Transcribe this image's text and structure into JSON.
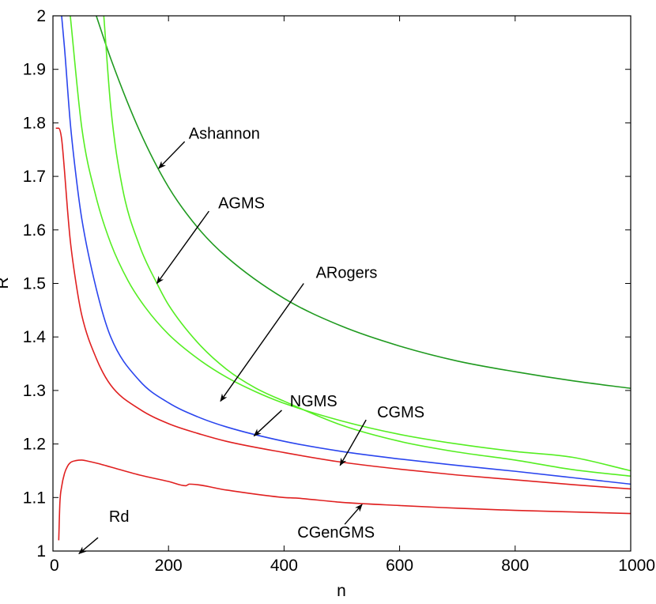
{
  "chart_data": {
    "type": "line",
    "title": "",
    "xlabel": "n",
    "ylabel": "R",
    "xlim": [
      0,
      1000
    ],
    "ylim": [
      1,
      2
    ],
    "xticks": [
      0,
      200,
      400,
      600,
      800,
      1000
    ],
    "xtick_labels": [
      "0",
      "200",
      "400",
      "600",
      "800",
      "1000"
    ],
    "yticks": [
      1,
      1.1,
      1.2,
      1.3,
      1.4,
      1.5,
      1.6,
      1.7,
      1.8,
      1.9,
      2
    ],
    "ytick_labels": [
      "1",
      "1.1",
      "1.2",
      "1.3",
      "1.4",
      "1.5",
      "1.6",
      "1.7",
      "1.8",
      "1.9",
      "2"
    ],
    "grid": false,
    "series": [
      {
        "name": "Ashannon",
        "color": "#1f9a1f",
        "x": [
          75,
          100,
          150,
          200,
          250,
          300,
          400,
          500,
          600,
          700,
          800,
          900,
          1000
        ],
        "y": [
          2.0,
          1.92,
          1.785,
          1.68,
          1.605,
          1.55,
          1.472,
          1.42,
          1.383,
          1.355,
          1.335,
          1.318,
          1.304
        ]
      },
      {
        "name": "AGMS",
        "color": "#55ee22",
        "x": [
          30,
          50,
          75,
          100,
          130,
          160,
          200,
          250,
          300,
          350,
          400,
          500,
          600,
          700,
          800,
          900,
          1000
        ],
        "y": [
          2.0,
          1.79,
          1.66,
          1.575,
          1.505,
          1.455,
          1.405,
          1.36,
          1.325,
          1.298,
          1.276,
          1.243,
          1.218,
          1.2,
          1.186,
          1.175,
          1.15
        ]
      },
      {
        "name": "ARogers",
        "color": "#55ee22",
        "x": [
          88,
          100,
          120,
          150,
          180,
          200,
          250,
          300,
          350,
          400,
          500,
          600,
          700,
          800,
          900,
          1000
        ],
        "y": [
          2.0,
          1.83,
          1.68,
          1.57,
          1.5,
          1.46,
          1.39,
          1.34,
          1.305,
          1.28,
          1.235,
          1.205,
          1.185,
          1.17,
          1.152,
          1.14
        ]
      },
      {
        "name": "NGMS",
        "color": "#2a45ee",
        "x": [
          15,
          20,
          30,
          40,
          50,
          75,
          100,
          150,
          200,
          250,
          300,
          400,
          500,
          600,
          700,
          800,
          900,
          1000
        ],
        "y": [
          2.0,
          1.94,
          1.8,
          1.7,
          1.62,
          1.49,
          1.4,
          1.318,
          1.277,
          1.251,
          1.232,
          1.205,
          1.186,
          1.172,
          1.16,
          1.149,
          1.137,
          1.125
        ]
      },
      {
        "name": "CGMS",
        "color": "#e02020",
        "x": [
          5,
          10,
          15,
          20,
          25,
          30,
          40,
          50,
          75,
          100,
          150,
          200,
          250,
          300,
          400,
          500,
          600,
          700,
          800,
          900,
          1000
        ],
        "y": [
          1.79,
          1.79,
          1.77,
          1.71,
          1.64,
          1.58,
          1.5,
          1.44,
          1.36,
          1.31,
          1.265,
          1.238,
          1.22,
          1.205,
          1.184,
          1.166,
          1.153,
          1.142,
          1.133,
          1.124,
          1.116
        ]
      },
      {
        "name": "CGenGMS",
        "color": "#e02020",
        "x": [
          10,
          12,
          15,
          20,
          25,
          30,
          40,
          50,
          60,
          80,
          100,
          150,
          200,
          230,
          236,
          300,
          400,
          420,
          500,
          600,
          700,
          800,
          900,
          1000
        ],
        "y": [
          1.02,
          1.09,
          1.12,
          1.145,
          1.158,
          1.165,
          1.169,
          1.17,
          1.168,
          1.163,
          1.157,
          1.142,
          1.13,
          1.122,
          1.125,
          1.114,
          1.1,
          1.099,
          1.091,
          1.085,
          1.08,
          1.076,
          1.073,
          1.07
        ]
      }
    ],
    "annotations": [
      {
        "text": "Ashannon",
        "label_at": [
          235,
          1.77
        ],
        "arrow_from": [
          228,
          1.765
        ],
        "arrow_to": [
          183,
          1.715
        ],
        "anchor": "start"
      },
      {
        "text": "AGMS",
        "label_at": [
          286,
          1.64
        ],
        "arrow_from": [
          270,
          1.635
        ],
        "arrow_to": [
          180,
          1.5
        ],
        "anchor": "start"
      },
      {
        "text": "ARogers",
        "label_at": [
          455,
          1.51
        ],
        "arrow_from": [
          434,
          1.5
        ],
        "arrow_to": [
          290,
          1.28
        ],
        "anchor": "start"
      },
      {
        "text": "NGMS",
        "label_at": [
          410,
          1.27
        ],
        "arrow_from": [
          396,
          1.263
        ],
        "arrow_to": [
          348,
          1.215
        ],
        "anchor": "start"
      },
      {
        "text": "CGMS",
        "label_at": [
          561,
          1.25
        ],
        "arrow_from": [
          542,
          1.245
        ],
        "arrow_to": [
          497,
          1.16
        ],
        "anchor": "start"
      },
      {
        "text": "Rd",
        "label_at": [
          97,
          1.055
        ],
        "arrow_from": [
          78,
          1.025
        ],
        "arrow_to": [
          45,
          0.995
        ],
        "anchor": "start"
      },
      {
        "text": "CGenGMS",
        "label_at": [
          490,
          1.025
        ],
        "arrow_from": [
          505,
          1.05
        ],
        "arrow_to": [
          535,
          1.087
        ],
        "anchor": "middle"
      }
    ]
  }
}
